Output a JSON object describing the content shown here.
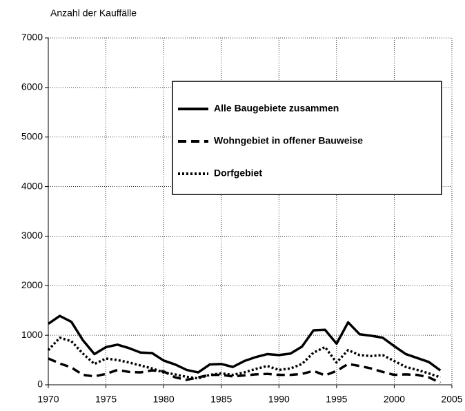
{
  "chart_data": {
    "type": "line",
    "y_label": "Anzahl der Kauffälle",
    "x": [
      1970,
      1971,
      1972,
      1973,
      1974,
      1975,
      1976,
      1977,
      1978,
      1979,
      1980,
      1981,
      1982,
      1983,
      1984,
      1985,
      1986,
      1987,
      1988,
      1989,
      1990,
      1991,
      1992,
      1993,
      1994,
      1995,
      1996,
      1997,
      1998,
      1999,
      2000,
      2001,
      2002,
      2003,
      2004
    ],
    "series": [
      {
        "name": "Alle Baugebiete zusammen",
        "color": "#000000",
        "dash": "solid",
        "values": [
          1230,
          1390,
          1270,
          900,
          620,
          760,
          810,
          740,
          650,
          640,
          490,
          410,
          300,
          250,
          410,
          420,
          360,
          480,
          560,
          620,
          600,
          630,
          770,
          1100,
          1110,
          830,
          1260,
          1020,
          990,
          950,
          780,
          620,
          540,
          460,
          290
        ]
      },
      {
        "name": "Wohngebiet in offener Bauweise",
        "color": "#000000",
        "dash": "dashed",
        "values": [
          530,
          430,
          350,
          200,
          170,
          220,
          300,
          260,
          250,
          290,
          270,
          150,
          100,
          150,
          200,
          200,
          170,
          190,
          210,
          220,
          200,
          200,
          220,
          280,
          190,
          280,
          420,
          380,
          330,
          260,
          200,
          210,
          200,
          150,
          40
        ]
      },
      {
        "name": "Dorfgebiet",
        "color": "#000000",
        "dash": "dotted",
        "values": [
          700,
          950,
          880,
          630,
          420,
          530,
          500,
          450,
          390,
          330,
          250,
          210,
          160,
          130,
          200,
          230,
          200,
          250,
          320,
          380,
          300,
          330,
          420,
          650,
          760,
          450,
          700,
          600,
          580,
          600,
          480,
          360,
          300,
          230,
          150
        ]
      }
    ],
    "xlim": [
      1970,
      2005
    ],
    "xticks": [
      1970,
      1975,
      1980,
      1985,
      1990,
      1995,
      2000,
      2005
    ],
    "ylim": [
      0,
      7000
    ],
    "yticks": [
      0,
      1000,
      2000,
      3000,
      4000,
      5000,
      6000,
      7000
    ],
    "grid": true,
    "legend": "upper right"
  }
}
